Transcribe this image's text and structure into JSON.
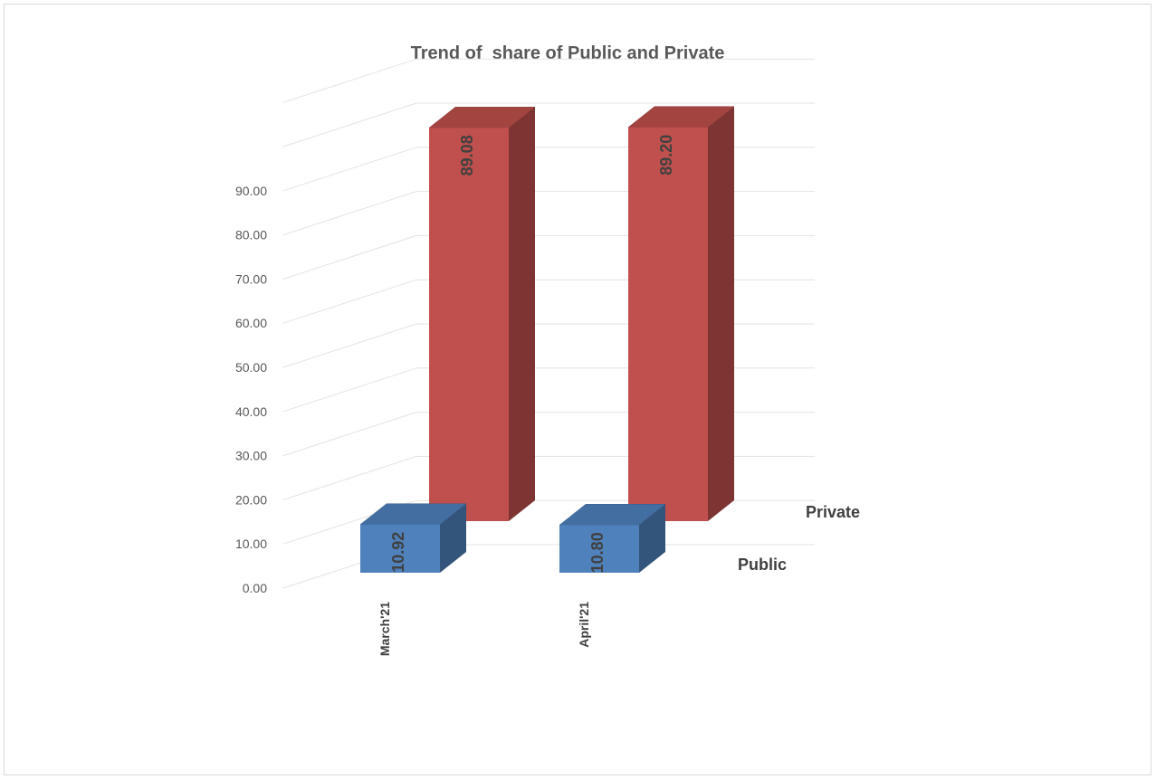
{
  "chart_data": {
    "type": "bar",
    "title": "Trend of  share of Public and Private",
    "categories": [
      "March'21",
      "April'21"
    ],
    "series": [
      {
        "name": "Public",
        "values": [
          10.92,
          10.8
        ],
        "color": "#4f81bd",
        "labels": [
          "10.92",
          "10.80"
        ]
      },
      {
        "name": "Private",
        "values": [
          89.08,
          89.2
        ],
        "color": "#c0504d",
        "labels": [
          "89.08",
          "89.20"
        ]
      }
    ],
    "yticks": [
      "0.00",
      "10.00",
      "20.00",
      "30.00",
      "40.00",
      "50.00",
      "60.00",
      "70.00",
      "80.00",
      "90.00"
    ],
    "ylim": [
      0,
      90
    ],
    "grid": true,
    "legend": "series labels on depth axis, right"
  }
}
